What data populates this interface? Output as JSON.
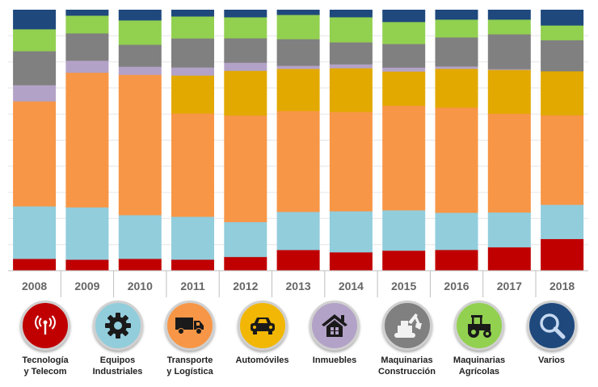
{
  "chart_data": {
    "type": "bar",
    "stacked": true,
    "normalized": true,
    "title": "",
    "xlabel": "",
    "ylabel": "",
    "ylim": [
      0,
      100
    ],
    "categories": [
      "2008",
      "2009",
      "2010",
      "2011",
      "2012",
      "2013",
      "2014",
      "2015",
      "2016",
      "2017",
      "2018"
    ],
    "series": [
      {
        "name": "Tecnología y Telecom",
        "color": "#c00000",
        "values": [
          4.6,
          4.3,
          4.6,
          4.3,
          5.3,
          8.0,
          7.1,
          7.7,
          8.0,
          9.0,
          12.1
        ]
      },
      {
        "name": "Equipos Industriales",
        "color": "#92cddc",
        "values": [
          20.1,
          20.1,
          16.7,
          16.4,
          13.3,
          14.6,
          15.7,
          15.4,
          14.2,
          13.3,
          13.0
        ]
      },
      {
        "name": "Transporte y Logística",
        "color": "#f79646",
        "values": [
          40.2,
          51.7,
          53.6,
          39.5,
          40.6,
          38.7,
          38.0,
          39.9,
          40.2,
          37.7,
          34.0
        ]
      },
      {
        "name": "Automóviles",
        "color": "#e2a900",
        "values": [
          0,
          0,
          0,
          14.5,
          17.0,
          16.1,
          16.7,
          13.0,
          14.8,
          16.7,
          16.7
        ]
      },
      {
        "name": "Inmuebles",
        "color": "#b3a2c7",
        "values": [
          6.2,
          4.6,
          3.1,
          3.1,
          3.1,
          1.2,
          1.5,
          1.5,
          0.9,
          0.3,
          0
        ]
      },
      {
        "name": "Maquinarias Construcción",
        "color": "#808080",
        "values": [
          13.0,
          10.5,
          8.4,
          11.1,
          9.3,
          10.2,
          8.4,
          9.0,
          11.1,
          13.3,
          11.8
        ]
      },
      {
        "name": "Maquinarias Agrícolas",
        "color": "#92d050",
        "values": [
          8.4,
          6.8,
          9.3,
          8.4,
          8.0,
          9.3,
          9.6,
          8.4,
          6.8,
          5.6,
          5.6
        ]
      },
      {
        "name": "Varios",
        "color": "#1f497d",
        "values": [
          7.4,
          2.2,
          4.0,
          2.5,
          2.8,
          1.9,
          2.8,
          4.6,
          3.7,
          3.7,
          5.9
        ]
      }
    ]
  },
  "legend": [
    {
      "label": "Tecnología\ny Telecom",
      "color": "#c00000"
    },
    {
      "label": "Equipos\nIndustriales",
      "color": "#92cddc"
    },
    {
      "label": "Transporte\ny Logística",
      "color": "#f79646"
    },
    {
      "label": "Automóviles",
      "color": "#e2a900"
    },
    {
      "label": "Inmuebles",
      "color": "#b3a2c7"
    },
    {
      "label": "Maquinarias\nConstrucción",
      "color": "#808080"
    },
    {
      "label": "Maquinarias\nAgrícolas",
      "color": "#92d050"
    },
    {
      "label": "Varios",
      "color": "#1f497d"
    }
  ]
}
